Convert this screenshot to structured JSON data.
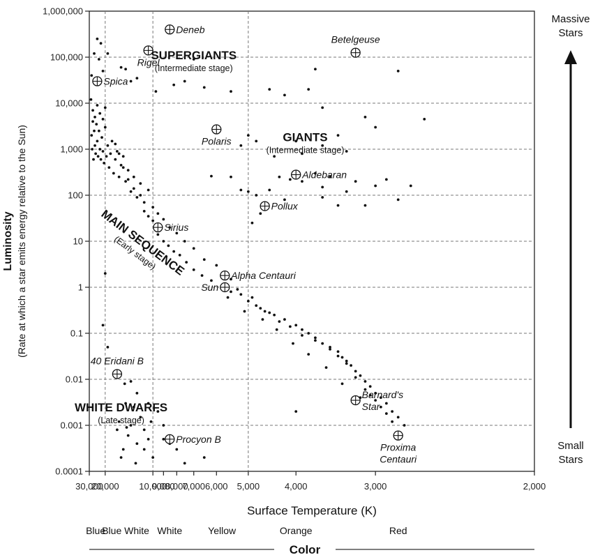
{
  "chart_data": {
    "type": "scatter",
    "title": "",
    "xlabel": "Surface Temperature (K)",
    "ylabel": "Luminosity",
    "ylabel_sub": "(Rate at which a star emits energy relative to the Sun)",
    "x_scale": "reciprocal",
    "y_scale": "log",
    "xlim": [
      30000,
      2000
    ],
    "ylim": [
      0.0001,
      1000000
    ],
    "grid": "dashed",
    "x_ticks": [
      {
        "value": 30000,
        "label": "30,000"
      },
      {
        "value": 20000,
        "label": "20,000"
      },
      {
        "value": 10000,
        "label": "10,000"
      },
      {
        "value": 9000,
        "label": "9,000"
      },
      {
        "value": 8000,
        "label": "8,000"
      },
      {
        "value": 7000,
        "label": "7,000"
      },
      {
        "value": 6000,
        "label": "6,000"
      },
      {
        "value": 5000,
        "label": "5,000"
      },
      {
        "value": 4000,
        "label": "4,000"
      },
      {
        "value": 3000,
        "label": "3,000"
      },
      {
        "value": 2000,
        "label": "2,000"
      }
    ],
    "x_gridlines": [
      20000,
      10000,
      5000
    ],
    "y_ticks": [
      {
        "value": 1000000,
        "label": "1,000,000"
      },
      {
        "value": 100000,
        "label": "100,000"
      },
      {
        "value": 10000,
        "label": "10,000"
      },
      {
        "value": 1000,
        "label": "1,000"
      },
      {
        "value": 100,
        "label": "100"
      },
      {
        "value": 10,
        "label": "10"
      },
      {
        "value": 1,
        "label": "1"
      },
      {
        "value": 0.1,
        "label": "0.1"
      },
      {
        "value": 0.01,
        "label": "0.01"
      },
      {
        "value": 0.001,
        "label": "0.001"
      },
      {
        "value": 0.0001,
        "label": "0.0001"
      }
    ],
    "named_stars": [
      {
        "name": "Deneb",
        "temp": 8500,
        "lum": 400000,
        "label_side": "right"
      },
      {
        "name": "Rigel",
        "temp": 10500,
        "lum": 140000,
        "label_side": "below"
      },
      {
        "name": "Betelgeuse",
        "temp": 3200,
        "lum": 125000,
        "label_side": "above"
      },
      {
        "name": "Spica",
        "temp": 24000,
        "lum": 30000,
        "label_side": "right"
      },
      {
        "name": "Polaris",
        "temp": 6000,
        "lum": 2700,
        "label_side": "below"
      },
      {
        "name": "Aldebaran",
        "temp": 4000,
        "lum": 280,
        "label_side": "right"
      },
      {
        "name": "Pollux",
        "temp": 4600,
        "lum": 58,
        "label_side": "right"
      },
      {
        "name": "Sirius",
        "temp": 9500,
        "lum": 20,
        "label_side": "right"
      },
      {
        "name": "Alpha Centauri",
        "temp": 5700,
        "lum": 1.8,
        "label_side": "right"
      },
      {
        "name": "Sun",
        "temp": 5700,
        "lum": 1,
        "label_side": "left"
      },
      {
        "name": "40 Eridani B",
        "temp": 16000,
        "lum": 0.013,
        "label_side": "above"
      },
      {
        "name": "Procyon B",
        "temp": 8500,
        "lum": 0.0005,
        "label_side": "right"
      },
      {
        "name": "Barnard's Star",
        "label_lines": [
          "Barnard's",
          "Star"
        ],
        "temp": 3200,
        "lum": 0.0035,
        "label_side": "right"
      },
      {
        "name": "Proxima Centauri",
        "label_lines": [
          "Proxima",
          "Centauri"
        ],
        "temp": 2800,
        "lum": 0.0006,
        "label_side": "below"
      }
    ],
    "regions": [
      {
        "name": "SUPERGIANTS",
        "stage": "(Intermediate stage)",
        "temp": 7000,
        "lum": 90000
      },
      {
        "name": "GIANTS",
        "stage": "(Intermediate stage)",
        "temp": 3850,
        "lum": 1500
      },
      {
        "name": "MAIN SEQUENCE",
        "stage": "(Early stage)",
        "temp": 11500,
        "lum": 8,
        "rotate": 37
      },
      {
        "name": "WHITE DWARFS",
        "stage": "(Late stage)",
        "temp": 15000,
        "lum": 0.002
      }
    ],
    "field_stars": [
      [
        28000,
        40000
      ],
      [
        26000,
        120000
      ],
      [
        24000,
        250000
      ],
      [
        22000,
        200000
      ],
      [
        21000,
        50000
      ],
      [
        19000,
        120000
      ],
      [
        23000,
        90000
      ],
      [
        14000,
        55000
      ],
      [
        12000,
        35000
      ],
      [
        15000,
        60000
      ],
      [
        13000,
        30000
      ],
      [
        9700,
        18000
      ],
      [
        8200,
        25000
      ],
      [
        7500,
        30000
      ],
      [
        6500,
        22000
      ],
      [
        5500,
        18000
      ],
      [
        7000,
        90000
      ],
      [
        4500,
        20000
      ],
      [
        4200,
        15000
      ],
      [
        3800,
        20000
      ],
      [
        3600,
        8000
      ],
      [
        3100,
        5000
      ],
      [
        3000,
        3000
      ],
      [
        2800,
        50000
      ],
      [
        2600,
        4500
      ],
      [
        3700,
        55000
      ],
      [
        4000,
        1500
      ],
      [
        3600,
        1200
      ],
      [
        3400,
        2000
      ],
      [
        5000,
        2000
      ],
      [
        4800,
        1500
      ],
      [
        5200,
        1200
      ],
      [
        4400,
        700
      ],
      [
        3900,
        800
      ],
      [
        3300,
        900
      ],
      [
        6200,
        260
      ],
      [
        5500,
        250
      ],
      [
        5000,
        120
      ],
      [
        4800,
        100
      ],
      [
        4500,
        130
      ],
      [
        4300,
        250
      ],
      [
        4100,
        220
      ],
      [
        3900,
        200
      ],
      [
        3700,
        300
      ],
      [
        3600,
        150
      ],
      [
        3500,
        250
      ],
      [
        3300,
        120
      ],
      [
        3200,
        200
      ],
      [
        3000,
        160
      ],
      [
        2900,
        220
      ],
      [
        2800,
        80
      ],
      [
        2700,
        160
      ],
      [
        3100,
        60
      ],
      [
        3400,
        60
      ],
      [
        3600,
        90
      ],
      [
        4200,
        80
      ],
      [
        4700,
        40
      ],
      [
        4900,
        25
      ],
      [
        5200,
        130
      ],
      [
        28000,
        2000
      ],
      [
        27500,
        1000
      ],
      [
        27000,
        4000
      ],
      [
        26500,
        600
      ],
      [
        26000,
        2500
      ],
      [
        25500,
        1200
      ],
      [
        25000,
        800
      ],
      [
        24500,
        3500
      ],
      [
        24000,
        1500
      ],
      [
        23500,
        700
      ],
      [
        23000,
        2500
      ],
      [
        22500,
        1000
      ],
      [
        22000,
        600
      ],
      [
        21500,
        1800
      ],
      [
        21000,
        900
      ],
      [
        20500,
        500
      ],
      [
        20000,
        3000
      ],
      [
        19500,
        700
      ],
      [
        19000,
        1200
      ],
      [
        18500,
        400
      ],
      [
        18000,
        800
      ],
      [
        17500,
        1500
      ],
      [
        17000,
        300
      ],
      [
        16500,
        600
      ],
      [
        16000,
        900
      ],
      [
        15500,
        250
      ],
      [
        15000,
        450
      ],
      [
        14500,
        700
      ],
      [
        14000,
        200
      ],
      [
        13500,
        350
      ],
      [
        13000,
        120
      ],
      [
        12500,
        250
      ],
      [
        12000,
        90
      ],
      [
        11500,
        180
      ],
      [
        11000,
        70
      ],
      [
        10500,
        130
      ],
      [
        10000,
        55
      ],
      [
        9500,
        40
      ],
      [
        9000,
        30
      ],
      [
        8500,
        20
      ],
      [
        8000,
        15
      ],
      [
        7500,
        10
      ],
      [
        7000,
        7
      ],
      [
        6500,
        4
      ],
      [
        6000,
        3
      ],
      [
        5500,
        1.5
      ],
      [
        27000,
        7000
      ],
      [
        25500,
        5000
      ],
      [
        24000,
        9000
      ],
      [
        22500,
        6000
      ],
      [
        21000,
        4500
      ],
      [
        20000,
        8000
      ],
      [
        28500,
        12000
      ],
      [
        16500,
        1300
      ],
      [
        15500,
        800
      ],
      [
        14500,
        400
      ],
      [
        13500,
        220
      ],
      [
        12500,
        140
      ],
      [
        11500,
        100
      ],
      [
        11000,
        45
      ],
      [
        10500,
        35
      ],
      [
        10000,
        28
      ],
      [
        9500,
        14
      ],
      [
        9000,
        10
      ],
      [
        8600,
        8
      ],
      [
        8200,
        6
      ],
      [
        7800,
        5
      ],
      [
        7400,
        3.5
      ],
      [
        7000,
        2.4
      ],
      [
        6600,
        1.8
      ],
      [
        6200,
        1.4
      ],
      [
        5500,
        0.8
      ],
      [
        5200,
        0.7
      ],
      [
        5000,
        0.5
      ],
      [
        4800,
        0.4
      ],
      [
        4600,
        0.3
      ],
      [
        4400,
        0.25
      ],
      [
        4200,
        0.2
      ],
      [
        4000,
        0.15
      ],
      [
        3900,
        0.12
      ],
      [
        3800,
        0.1
      ],
      [
        3700,
        0.08
      ],
      [
        3600,
        0.06
      ],
      [
        3500,
        0.05
      ],
      [
        3400,
        0.04
      ],
      [
        3350,
        0.03
      ],
      [
        3300,
        0.025
      ],
      [
        3250,
        0.02
      ],
      [
        3200,
        0.015
      ],
      [
        3150,
        0.012
      ],
      [
        3100,
        0.009
      ],
      [
        3050,
        0.007
      ],
      [
        3000,
        0.005
      ],
      [
        2950,
        0.004
      ],
      [
        2900,
        0.003
      ],
      [
        2850,
        0.002
      ],
      [
        2800,
        0.0015
      ],
      [
        2750,
        0.001
      ],
      [
        5300,
        0.9
      ],
      [
        4900,
        0.6
      ],
      [
        4700,
        0.35
      ],
      [
        4500,
        0.28
      ],
      [
        4300,
        0.18
      ],
      [
        4100,
        0.14
      ],
      [
        3900,
        0.09
      ],
      [
        3700,
        0.07
      ],
      [
        3500,
        0.045
      ],
      [
        3400,
        0.032
      ],
      [
        3300,
        0.022
      ],
      [
        3200,
        0.011
      ],
      [
        3100,
        0.006
      ],
      [
        3050,
        0.0045
      ],
      [
        3000,
        0.0035
      ],
      [
        2950,
        0.0025
      ],
      [
        2900,
        0.0018
      ],
      [
        2850,
        0.0012
      ],
      [
        5600,
        0.6
      ],
      [
        5100,
        0.3
      ],
      [
        4650,
        0.2
      ],
      [
        4350,
        0.12
      ],
      [
        4050,
        0.06
      ],
      [
        3800,
        0.035
      ],
      [
        3550,
        0.018
      ],
      [
        3350,
        0.008
      ],
      [
        3150,
        0.004
      ],
      [
        20000,
        2
      ],
      [
        21000,
        0.15
      ],
      [
        19000,
        0.05
      ],
      [
        15500,
        0.0012
      ],
      [
        14000,
        0.003
      ],
      [
        13000,
        0.001
      ],
      [
        12000,
        0.0004
      ],
      [
        11000,
        0.0008
      ],
      [
        10000,
        0.0002
      ],
      [
        9000,
        0.0005
      ],
      [
        10500,
        0.003
      ],
      [
        12500,
        0.0025
      ],
      [
        13500,
        0.0006
      ],
      [
        14500,
        0.0003
      ],
      [
        15000,
        0.0002
      ],
      [
        11500,
        0.0015
      ],
      [
        10200,
        0.0012
      ],
      [
        9500,
        0.002
      ],
      [
        8000,
        0.0003
      ],
      [
        6500,
        0.0002
      ],
      [
        7500,
        0.00015
      ],
      [
        12200,
        0.00015
      ],
      [
        13800,
        0.0009
      ],
      [
        11000,
        0.0003
      ],
      [
        14200,
        0.008
      ],
      [
        13000,
        0.009
      ],
      [
        12000,
        0.005
      ],
      [
        9000,
        0.001
      ],
      [
        10500,
        0.0005
      ],
      [
        8500,
        0.0004
      ],
      [
        4000,
        0.002
      ],
      [
        16000,
        0.0008
      ]
    ]
  },
  "side_labels": {
    "top": [
      "Massive",
      "Stars"
    ],
    "bottom": [
      "Small",
      "Stars"
    ]
  },
  "color_scale": {
    "title": "Color",
    "names": [
      {
        "label": "Blue",
        "temp": 25000
      },
      {
        "label": "Blue White",
        "temp": 14000
      },
      {
        "label": "White",
        "temp": 8500
      },
      {
        "label": "Yellow",
        "temp": 5800
      },
      {
        "label": "Orange",
        "temp": 4000
      },
      {
        "label": "Red",
        "temp": 2800
      }
    ]
  }
}
